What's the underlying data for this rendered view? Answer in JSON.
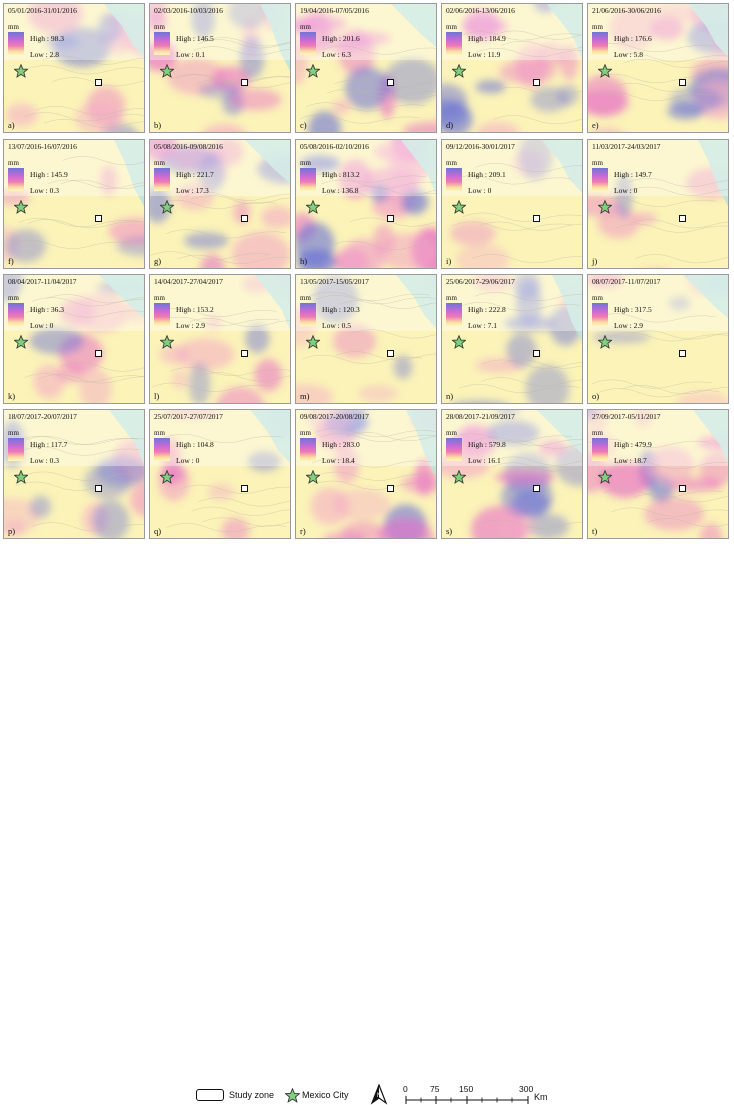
{
  "panels": [
    {
      "label": "a)",
      "date": "05/01/2016-31/01/2016",
      "high": "High : 98.3",
      "low": "Low : 2.8",
      "intensity": 0.45
    },
    {
      "label": "b)",
      "date": "02/03/2016-10/03/2016",
      "high": "High : 146.5",
      "low": "Low : 0.1",
      "intensity": 0.6
    },
    {
      "label": "c)",
      "date": "19/04/2016-07/05/2016",
      "high": "High : 201.6",
      "low": "Low : 6.3",
      "intensity": 0.55
    },
    {
      "label": "d)",
      "date": "02/06/2016-13/06/2016",
      "high": "High : 184.9",
      "low": "Low : 11.9",
      "intensity": 0.6
    },
    {
      "label": "e)",
      "date": "21/06/2016-30/06/2016",
      "high": "High : 176.6",
      "low": "Low : 5.8",
      "intensity": 0.6
    },
    {
      "label": "f)",
      "date": "13/07/2016-16/07/2016",
      "high": "High : 145.9",
      "low": "Low : 0.3",
      "intensity": 0.15
    },
    {
      "label": "g)",
      "date": "05/08/2016-09/08/2016",
      "high": "High : 221.7",
      "low": "Low : 17.3",
      "intensity": 0.6
    },
    {
      "label": "h)",
      "date": "05/08/2016-02/10/2016",
      "high": "High : 813.2",
      "low": "Low : 136.8",
      "intensity": 0.85
    },
    {
      "label": "i)",
      "date": "09/12/2016-30/01/2017",
      "high": "High : 209.1",
      "low": "Low : 0",
      "intensity": 0.05
    },
    {
      "label": "j)",
      "date": "11/03/2017-24/03/2017",
      "high": "High : 149.7",
      "low": "Low : 0",
      "intensity": 0.15
    },
    {
      "label": "k)",
      "date": "08/04/2017-11/04/2017",
      "high": "High : 36.3",
      "low": "Low : 0",
      "intensity": 0.4
    },
    {
      "label": "l)",
      "date": "14/04/2017-27/04/2017",
      "high": "High : 153.2",
      "low": "Low : 2.9",
      "intensity": 0.4
    },
    {
      "label": "m)",
      "date": "13/05/2017-15/05/2017",
      "high": "High : 120.3",
      "low": "Low : 0.5",
      "intensity": 0.2
    },
    {
      "label": "n)",
      "date": "25/06/2017-29/06/2017",
      "high": "High : 222.8",
      "low": "Low : 7.1",
      "intensity": 0.35
    },
    {
      "label": "o)",
      "date": "08/07/2017-11/07/2017",
      "high": "High : 317.5",
      "low": "Low : 2.9",
      "intensity": 0.15
    },
    {
      "label": "p)",
      "date": "18/07/2017-20/07/2017",
      "high": "High : 117.7",
      "low": "Low : 0.3",
      "intensity": 0.4
    },
    {
      "label": "q)",
      "date": "25/07/2017-27/07/2017",
      "high": "High : 104.8",
      "low": "Low : 0",
      "intensity": 0.25
    },
    {
      "label": "r)",
      "date": "09/08/2017-20/08/2017",
      "high": "High : 283.0",
      "low": "Low : 18.4",
      "intensity": 0.6
    },
    {
      "label": "s)",
      "date": "28/08/2017-21/09/2017",
      "high": "High : 579.8",
      "low": "Low : 16.1",
      "intensity": 0.7
    },
    {
      "label": "t)",
      "date": "27/09/2017-05/11/2017",
      "high": "High : 479.9",
      "low": "Low : 18.7",
      "intensity": 0.6
    }
  ],
  "unit": "mm",
  "legend": {
    "study_zone": "Study zone",
    "mexico_city": "Mexico City",
    "north_symbol": "N",
    "scale_ticks": [
      "0",
      "75",
      "150",
      "300"
    ],
    "scale_unit": "Km"
  },
  "colors": {
    "high": "#6e76d6",
    "mid": "#e86cc8",
    "low": "#fff6c0",
    "sea": "#bfe3dc",
    "star": "#7ed07a"
  }
}
